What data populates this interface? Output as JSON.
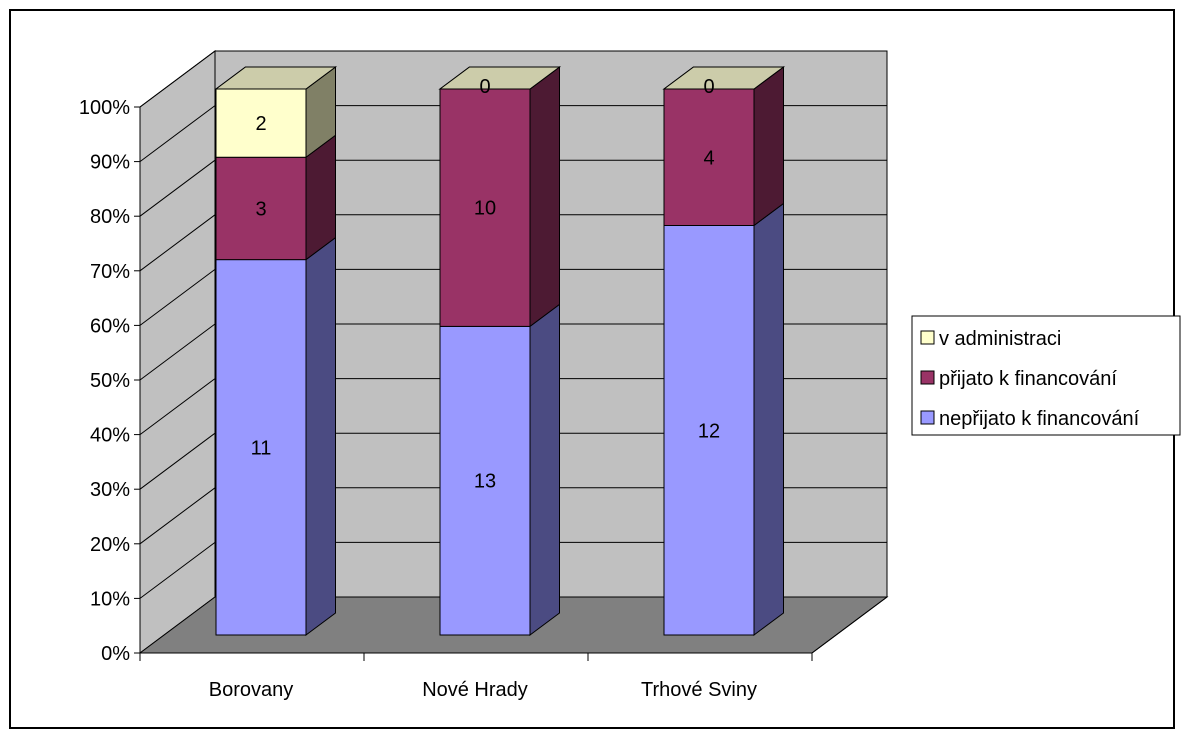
{
  "chart_data": {
    "type": "bar",
    "stacked": "percent",
    "three_d": true,
    "categories": [
      "Borovany",
      "Nové Hrady",
      "Trhové Sviny"
    ],
    "series": [
      {
        "name": "nepřijato k financování",
        "values": [
          11,
          13,
          12
        ],
        "color": "#9999FF",
        "side_color": "#4B4B82"
      },
      {
        "name": "přijato k financování",
        "values": [
          3,
          10,
          4
        ],
        "color": "#993366",
        "side_color": "#4D1A33"
      },
      {
        "name": "v administraci",
        "values": [
          2,
          0,
          0
        ],
        "color": "#FFFFCC",
        "side_color": "#808066"
      }
    ],
    "y_ticks": [
      "0%",
      "10%",
      "20%",
      "30%",
      "40%",
      "50%",
      "60%",
      "70%",
      "80%",
      "90%",
      "100%"
    ],
    "ylim": [
      0,
      100
    ],
    "grid": true,
    "legend_position": "right",
    "legend_order": [
      "v administraci",
      "přijato k financování",
      "nepřijato k financování"
    ],
    "colors": {
      "wall": "#C0C0C0",
      "floor": "#808080",
      "grid": "#000000",
      "border": "#000000"
    }
  }
}
